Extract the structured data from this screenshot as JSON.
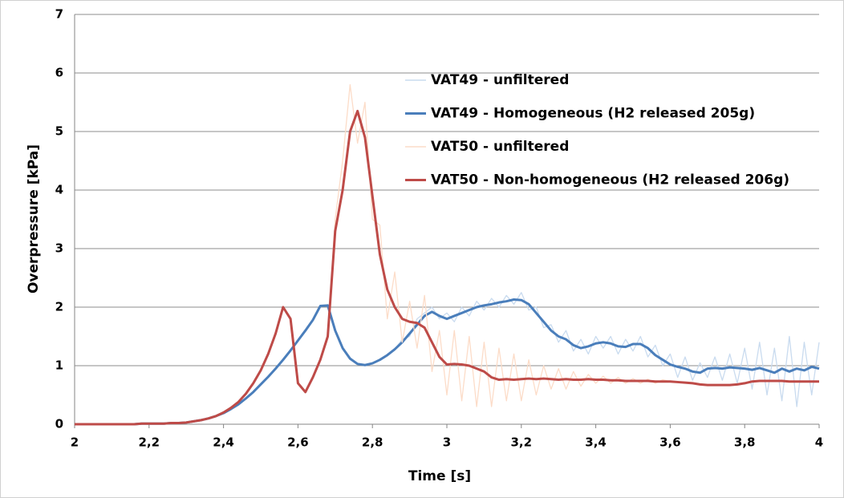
{
  "chart_data": {
    "type": "line",
    "xlabel": "Time [s]",
    "ylabel": "Overpressure  [kPa]",
    "xlim": [
      2,
      4
    ],
    "ylim": [
      0,
      7
    ],
    "xticks": [
      2,
      {
        "value": 2.2,
        "label": "2,2"
      },
      {
        "value": 2.4,
        "label": "2,4"
      },
      {
        "value": 2.6,
        "label": "2,6"
      },
      {
        "value": 2.8,
        "label": "2,8"
      },
      3,
      {
        "value": 3.2,
        "label": "3,2"
      },
      {
        "value": 3.4,
        "label": "3,4"
      },
      {
        "value": 3.6,
        "label": "3,6"
      },
      {
        "value": 3.8,
        "label": "3,8"
      },
      4
    ],
    "yticks": [
      0,
      1,
      2,
      3,
      4,
      5,
      6,
      7
    ],
    "grid": true,
    "legend": "upper right",
    "x": [
      2,
      2.02,
      2.04,
      2.06,
      2.08,
      2.1,
      2.12,
      2.14,
      2.16,
      2.18,
      2.2,
      2.22,
      2.24,
      2.26,
      2.28,
      2.3,
      2.32,
      2.34,
      2.36,
      2.38,
      2.4,
      2.42,
      2.44,
      2.46,
      2.48,
      2.5,
      2.52,
      2.54,
      2.56,
      2.58,
      2.6,
      2.62,
      2.64,
      2.66,
      2.68,
      2.7,
      2.72,
      2.74,
      2.76,
      2.78,
      2.8,
      2.82,
      2.84,
      2.86,
      2.88,
      2.9,
      2.92,
      2.94,
      2.96,
      2.98,
      3,
      3.02,
      3.04,
      3.06,
      3.08,
      3.1,
      3.12,
      3.14,
      3.16,
      3.18,
      3.2,
      3.22,
      3.24,
      3.26,
      3.28,
      3.3,
      3.32,
      3.34,
      3.36,
      3.38,
      3.4,
      3.42,
      3.44,
      3.46,
      3.48,
      3.5,
      3.52,
      3.54,
      3.56,
      3.58,
      3.6,
      3.62,
      3.64,
      3.66,
      3.68,
      3.7,
      3.72,
      3.74,
      3.76,
      3.78,
      3.8,
      3.82,
      3.84,
      3.86,
      3.88,
      3.9,
      3.92,
      3.94,
      3.96,
      3.98,
      4
    ],
    "series": [
      {
        "name": "VAT49 - unfiltered",
        "color": "#c9dbef",
        "values": [
          0,
          0,
          0,
          0,
          0,
          0,
          0,
          0,
          0,
          0.01,
          0.01,
          0.01,
          0.01,
          0.02,
          0.02,
          0.03,
          0.05,
          0.07,
          0.1,
          0.14,
          0.19,
          0.26,
          0.34,
          0.44,
          0.55,
          0.68,
          0.81,
          0.95,
          1.1,
          1.26,
          1.43,
          1.6,
          1.78,
          2.02,
          2.03,
          1.6,
          1.3,
          1.12,
          1.03,
          1.01,
          1.04,
          1.1,
          1.18,
          1.28,
          1.45,
          1.5,
          1.8,
          1.9,
          2.0,
          1.8,
          1.9,
          1.75,
          2.0,
          1.85,
          2.1,
          1.95,
          2.15,
          2.0,
          2.2,
          2.05,
          2.25,
          1.95,
          2.0,
          1.65,
          1.7,
          1.4,
          1.6,
          1.25,
          1.45,
          1.2,
          1.5,
          1.3,
          1.5,
          1.2,
          1.45,
          1.25,
          1.5,
          1.15,
          1.35,
          1.0,
          1.2,
          0.8,
          1.15,
          0.75,
          1.05,
          0.8,
          1.15,
          0.75,
          1.2,
          0.7,
          1.3,
          0.6,
          1.4,
          0.5,
          1.3,
          0.4,
          1.5,
          0.3,
          1.4,
          0.5,
          1.4
        ]
      },
      {
        "name": "VAT49 - Homogeneous (H2 released 205g)",
        "color": "#4a7ebb",
        "values": [
          0,
          0,
          0,
          0,
          0,
          0,
          0,
          0,
          0,
          0.01,
          0.01,
          0.01,
          0.01,
          0.02,
          0.02,
          0.03,
          0.05,
          0.07,
          0.1,
          0.14,
          0.19,
          0.26,
          0.34,
          0.44,
          0.55,
          0.68,
          0.81,
          0.95,
          1.1,
          1.26,
          1.43,
          1.6,
          1.78,
          2.02,
          2.03,
          1.6,
          1.3,
          1.12,
          1.03,
          1.01,
          1.04,
          1.1,
          1.18,
          1.28,
          1.4,
          1.55,
          1.7,
          1.85,
          1.92,
          1.85,
          1.8,
          1.85,
          1.9,
          1.95,
          2.0,
          2.03,
          2.05,
          2.08,
          2.1,
          2.13,
          2.12,
          2.05,
          1.9,
          1.75,
          1.6,
          1.5,
          1.45,
          1.35,
          1.3,
          1.33,
          1.38,
          1.4,
          1.38,
          1.33,
          1.32,
          1.37,
          1.37,
          1.3,
          1.18,
          1.1,
          1.02,
          0.98,
          0.95,
          0.9,
          0.88,
          0.95,
          0.96,
          0.95,
          0.97,
          0.96,
          0.95,
          0.93,
          0.96,
          0.92,
          0.88,
          0.95,
          0.9,
          0.95,
          0.92,
          0.98,
          0.95
        ]
      },
      {
        "name": "VAT50 - unfiltered",
        "color": "#fcdcc8",
        "values": [
          0,
          0,
          0,
          0,
          0,
          0,
          0,
          0,
          0,
          0.01,
          0.01,
          0.01,
          0.01,
          0.02,
          0.02,
          0.03,
          0.05,
          0.07,
          0.1,
          0.14,
          0.2,
          0.28,
          0.38,
          0.52,
          0.7,
          0.92,
          1.2,
          1.55,
          2.0,
          1.8,
          0.7,
          0.55,
          0.8,
          1.1,
          1.5,
          3.5,
          4.5,
          5.8,
          4.8,
          5.5,
          3.5,
          3.4,
          1.8,
          2.6,
          1.4,
          2.1,
          1.3,
          2.2,
          0.9,
          1.6,
          0.5,
          1.6,
          0.4,
          1.5,
          0.3,
          1.4,
          0.3,
          1.3,
          0.4,
          1.2,
          0.4,
          1.1,
          0.5,
          1.0,
          0.6,
          0.95,
          0.6,
          0.9,
          0.65,
          0.85,
          0.7,
          0.82,
          0.7,
          0.8,
          0.7,
          0.78,
          0.7,
          0.77,
          0.7,
          0.76,
          0.73,
          0.72,
          0.71,
          0.7,
          0.68,
          0.67,
          0.67,
          0.67,
          0.67,
          0.68,
          0.7,
          0.73,
          0.74,
          0.74,
          0.74,
          0.74,
          0.73,
          0.73,
          0.73,
          0.73,
          0.73
        ]
      },
      {
        "name": "VAT50 - Non-homogeneous (H2 released 206g)",
        "color": "#be4b48",
        "values": [
          0,
          0,
          0,
          0,
          0,
          0,
          0,
          0,
          0,
          0.01,
          0.01,
          0.01,
          0.01,
          0.02,
          0.02,
          0.03,
          0.05,
          0.07,
          0.1,
          0.14,
          0.2,
          0.28,
          0.38,
          0.52,
          0.7,
          0.92,
          1.2,
          1.55,
          2.0,
          1.8,
          0.7,
          0.55,
          0.8,
          1.1,
          1.5,
          3.3,
          4.0,
          5.0,
          5.35,
          4.9,
          3.9,
          2.9,
          2.3,
          2.0,
          1.8,
          1.75,
          1.73,
          1.65,
          1.4,
          1.15,
          1.02,
          1.03,
          1.02,
          1.0,
          0.95,
          0.9,
          0.8,
          0.76,
          0.77,
          0.76,
          0.77,
          0.78,
          0.77,
          0.78,
          0.77,
          0.76,
          0.77,
          0.76,
          0.76,
          0.77,
          0.76,
          0.76,
          0.75,
          0.75,
          0.74,
          0.74,
          0.74,
          0.74,
          0.73,
          0.73,
          0.73,
          0.72,
          0.71,
          0.7,
          0.68,
          0.67,
          0.67,
          0.67,
          0.67,
          0.68,
          0.7,
          0.73,
          0.74,
          0.74,
          0.74,
          0.74,
          0.73,
          0.73,
          0.73,
          0.73,
          0.73
        ]
      }
    ]
  }
}
